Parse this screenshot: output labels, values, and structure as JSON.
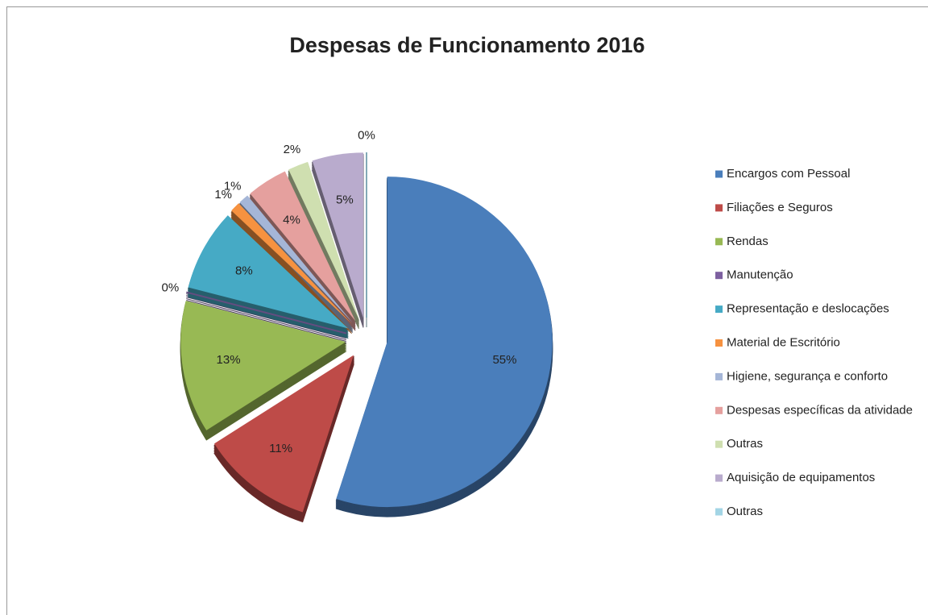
{
  "chart_data": {
    "type": "pie",
    "title": "Despesas de Funcionamento 2016",
    "categories": [
      "Encargos com Pessoal",
      "Filiações e Seguros",
      "Rendas",
      "Manutenção",
      "Representação e deslocações",
      "Material de Escritório",
      "Higiene, segurança e conforto",
      "Despesas específicas da atividade",
      "Outras",
      "Aquisição de equipamentos",
      "Outras"
    ],
    "values": [
      55,
      11,
      13,
      0,
      8,
      1,
      1,
      4,
      2,
      5,
      0
    ],
    "value_labels": [
      "55%",
      "11%",
      "13%",
      "0%",
      "8%",
      "1%",
      "1%",
      "4%",
      "2%",
      "5%",
      "0%"
    ],
    "colors": [
      "#4a7ebb",
      "#be4b48",
      "#98b954",
      "#7d60a0",
      "#46aac5",
      "#f69240",
      "#a5b6d7",
      "#e5a09e",
      "#cfdfb0",
      "#b9abcd",
      "#a3d5e5"
    ],
    "legend": "right"
  }
}
